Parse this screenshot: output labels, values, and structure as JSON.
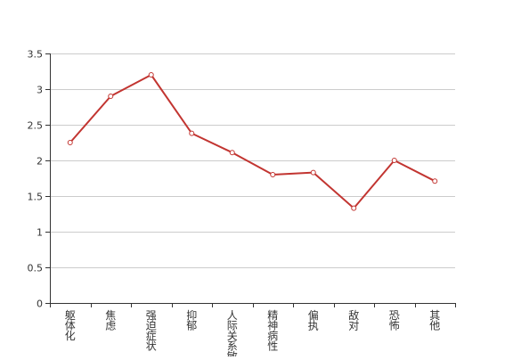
{
  "chart_data": {
    "type": "line",
    "categories": [
      "躯体化",
      "焦虑",
      "强迫症状",
      "抑郁",
      "人际关系敏感",
      "精神病性",
      "偏执",
      "敌对",
      "恐怖",
      "其他"
    ],
    "series": [
      {
        "values": [
          2.25,
          2.9,
          3.2,
          2.38,
          2.11,
          1.8,
          1.83,
          1.33,
          2.0,
          1.71
        ],
        "color": "#c23531"
      }
    ],
    "ylim": [
      0,
      3.5
    ],
    "yticks": [
      0,
      0.5,
      1,
      1.5,
      2,
      2.5,
      3,
      3.5
    ],
    "ytick_labels": [
      "0",
      "0.5",
      "1",
      "1.5",
      "2",
      "2.5",
      "3",
      "3.5"
    ],
    "grid": true,
    "legend": "none"
  }
}
